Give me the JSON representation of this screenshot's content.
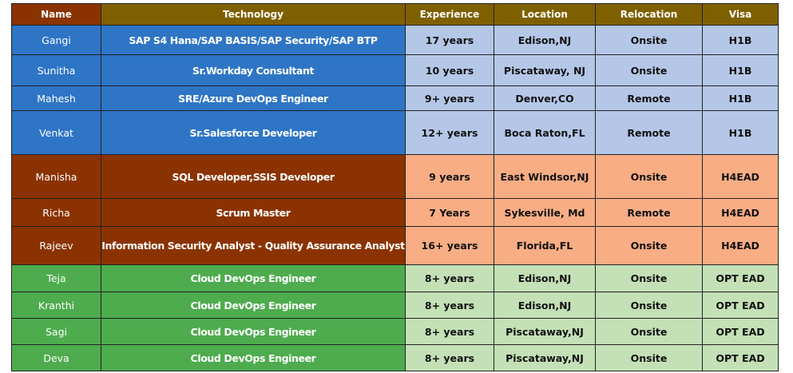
{
  "headers": [
    "Name",
    "Technology",
    "Experience",
    "Location",
    "Relocation",
    "Visa"
  ],
  "colors": {
    "header": "#7F6000",
    "header_name": "#8B3300",
    "blue": "#2E75C6",
    "light_blue": "#B4C7E7",
    "rust": "#8B3300",
    "orange": "#F8AD84",
    "green": "#4EAC4E",
    "light_green": "#C3E0B6"
  },
  "rows": [
    {
      "name": "Gangi",
      "technology": "SAP S4 Hana/SAP BASIS/SAP Security/SAP BTP",
      "experience": "17 years",
      "location": "Edison,NJ",
      "relocation": "Onsite",
      "visa": "H1B"
    },
    {
      "name": "Sunitha",
      "technology": "Sr.Workday Consultant",
      "experience": "10 years",
      "location": "Piscataway, NJ",
      "relocation": "Onsite",
      "visa": "H1B"
    },
    {
      "name": "Mahesh",
      "technology": "SRE/Azure DevOps Engineer",
      "experience": "9+ years",
      "location": "Denver,CO",
      "relocation": "Remote",
      "visa": "H1B"
    },
    {
      "name": "Venkat",
      "technology": "Sr.Salesforce Developer",
      "experience": "12+ years",
      "location": "Boca Raton,FL",
      "relocation": "Remote",
      "visa": "H1B"
    },
    {
      "name": "Manisha",
      "technology": "SQL Developer,SSIS Developer",
      "experience": "9 years",
      "location": "East Windsor,NJ",
      "relocation": "Onsite",
      "visa": "H4EAD"
    },
    {
      "name": "Richa",
      "technology": "Scrum Master",
      "experience": "7 Years",
      "location": "Sykesville, Md",
      "relocation": "Remote",
      "visa": "H4EAD"
    },
    {
      "name": "Rajeev",
      "technology": "Information Security Analyst - Quality Assurance Analyst",
      "experience": "16+ years",
      "location": "Florida,FL",
      "relocation": "Onsite",
      "visa": "H4EAD"
    },
    {
      "name": "Teja",
      "technology": "Cloud DevOps Engineer",
      "experience": "8+ years",
      "location": "Edison,NJ",
      "relocation": "Onsite",
      "visa": "OPT EAD"
    },
    {
      "name": "Kranthi",
      "technology": "Cloud DevOps Engineer",
      "experience": "8+ years",
      "location": "Edison,NJ",
      "relocation": "Onsite",
      "visa": "OPT EAD"
    },
    {
      "name": "Sagi",
      "technology": "Cloud DevOps Engineer",
      "experience": "8+ years",
      "location": "Piscataway,NJ",
      "relocation": "Onsite",
      "visa": "OPT EAD"
    },
    {
      "name": "Deva",
      "technology": "Cloud DevOps Engineer",
      "experience": "8+ years",
      "location": "Piscataway,NJ",
      "relocation": "Onsite",
      "visa": "OPT EAD"
    }
  ]
}
